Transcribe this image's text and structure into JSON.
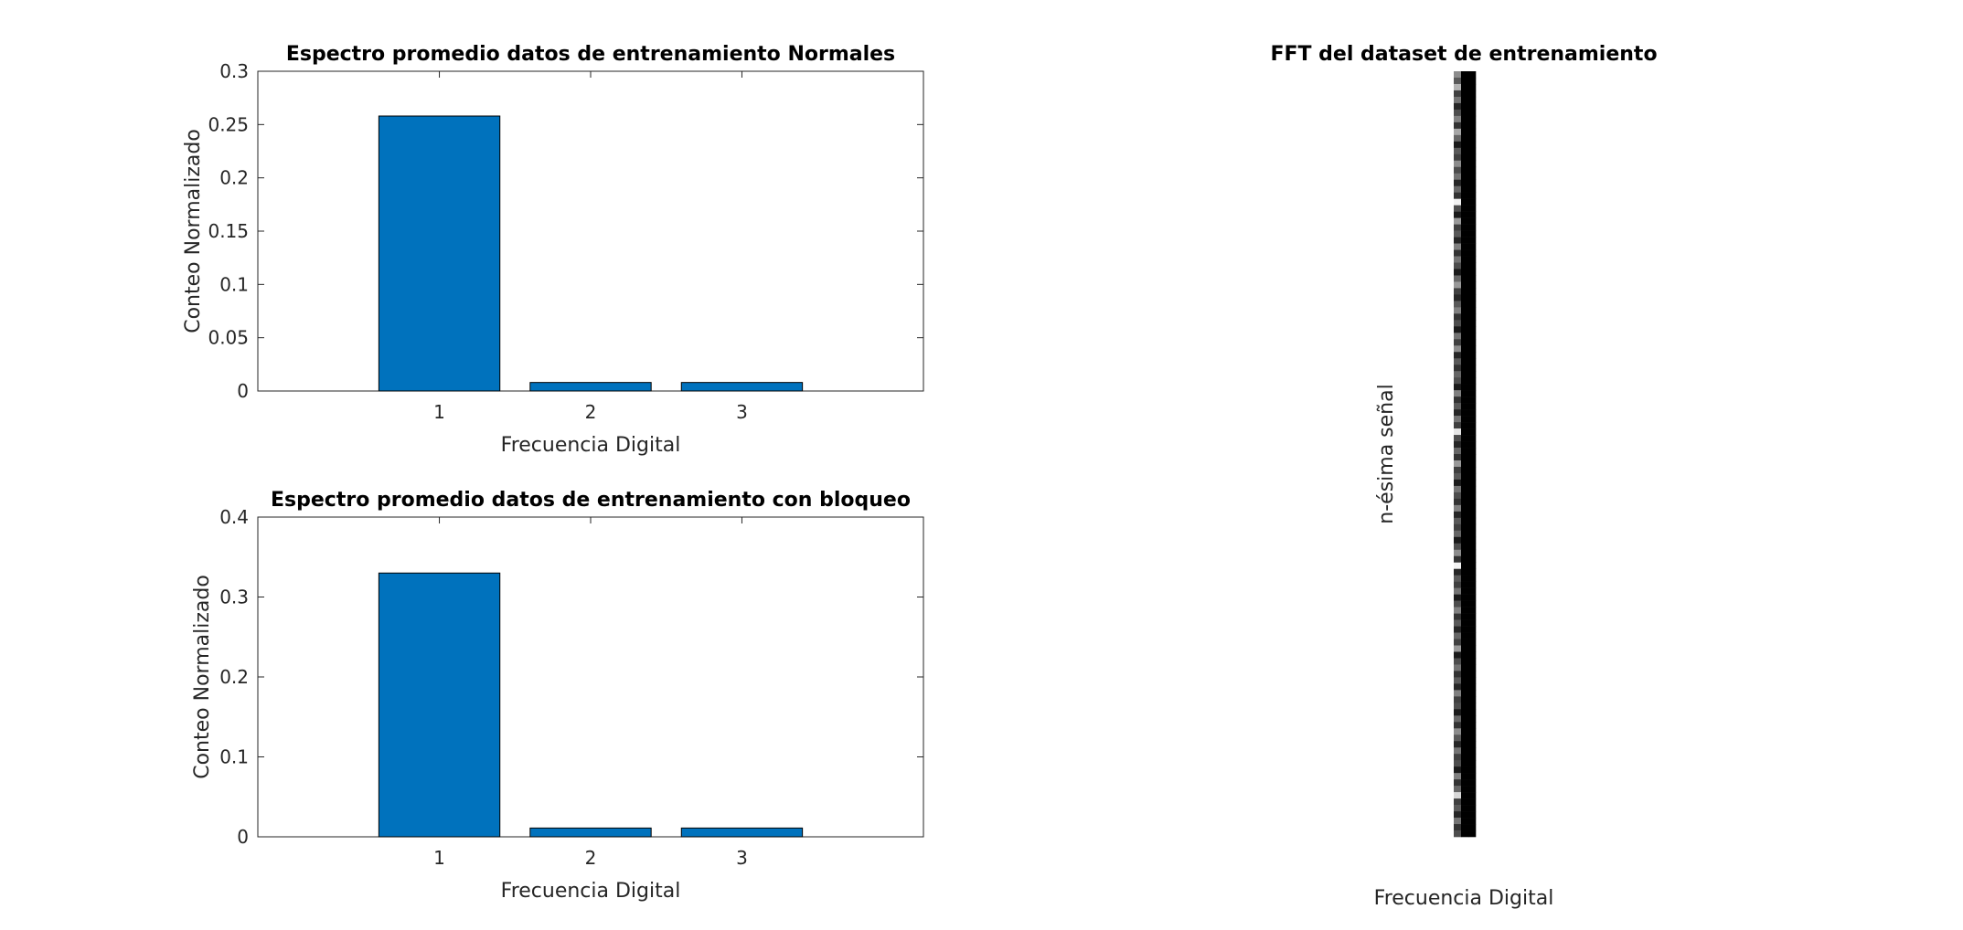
{
  "chart_data": [
    {
      "type": "bar",
      "title": "Espectro promedio datos de entrenamiento Normales",
      "xlabel": "Frecuencia Digital",
      "ylabel": "Conteo Normalizado",
      "categories": [
        "1",
        "2",
        "3"
      ],
      "values": [
        0.258,
        0.008,
        0.008
      ],
      "ylim": [
        0,
        0.3
      ],
      "xlim": [
        -0.2,
        4.2
      ],
      "yticks": [
        "0",
        "0.05",
        "0.1",
        "0.15",
        "0.2",
        "0.25",
        "0.3"
      ],
      "bar_color": "#0072BD",
      "grid": false
    },
    {
      "type": "bar",
      "title": "Espectro promedio datos de entrenamiento con bloqueo",
      "xlabel": "Frecuencia Digital",
      "ylabel": "Conteo Normalizado",
      "categories": [
        "1",
        "2",
        "3"
      ],
      "values": [
        0.33,
        0.011,
        0.011
      ],
      "ylim": [
        0,
        0.4
      ],
      "xlim": [
        -0.2,
        4.2
      ],
      "yticks": [
        "0",
        "0.1",
        "0.2",
        "0.3",
        "0.4"
      ],
      "bar_color": "#0072BD",
      "grid": false
    },
    {
      "type": "heatmap",
      "title": "FFT del dataset de entrenamiento",
      "xlabel": "Frecuencia Digital",
      "ylabel": "n-ésima señal",
      "colormap": "gray",
      "columns": 3,
      "rows": 120,
      "values": [
        [
          0.55,
          0.0,
          0.0
        ],
        [
          0.35,
          0.0,
          0.0
        ],
        [
          0.7,
          0.0,
          0.0
        ],
        [
          0.25,
          0.0,
          0.0
        ],
        [
          0.45,
          0.0,
          0.0
        ],
        [
          0.15,
          0.0,
          0.0
        ],
        [
          0.3,
          0.0,
          0.0
        ],
        [
          0.5,
          0.0,
          0.0
        ],
        [
          0.2,
          0.0,
          0.0
        ],
        [
          0.65,
          0.0,
          0.0
        ],
        [
          0.4,
          0.0,
          0.0
        ],
        [
          0.1,
          0.0,
          0.0
        ],
        [
          0.35,
          0.0,
          0.0
        ],
        [
          0.25,
          0.0,
          0.0
        ],
        [
          0.55,
          0.0,
          0.0
        ],
        [
          0.3,
          0.0,
          0.0
        ],
        [
          0.45,
          0.0,
          0.0
        ],
        [
          0.15,
          0.0,
          0.0
        ],
        [
          0.4,
          0.0,
          0.0
        ],
        [
          0.2,
          0.0,
          0.0
        ],
        [
          0.95,
          0.0,
          0.0
        ],
        [
          0.3,
          0.0,
          0.0
        ],
        [
          0.1,
          0.0,
          0.0
        ],
        [
          0.6,
          0.0,
          0.0
        ],
        [
          0.25,
          0.0,
          0.0
        ],
        [
          0.35,
          0.0,
          0.0
        ],
        [
          0.15,
          0.0,
          0.0
        ],
        [
          0.5,
          0.0,
          0.0
        ],
        [
          0.2,
          0.0,
          0.0
        ],
        [
          0.45,
          0.0,
          0.0
        ],
        [
          0.3,
          0.0,
          0.0
        ],
        [
          0.1,
          0.0,
          0.0
        ],
        [
          0.4,
          0.0,
          0.0
        ],
        [
          0.6,
          0.0,
          0.0
        ],
        [
          0.25,
          0.0,
          0.0
        ],
        [
          0.15,
          0.0,
          0.0
        ],
        [
          0.35,
          0.0,
          0.0
        ],
        [
          0.5,
          0.0,
          0.0
        ],
        [
          0.2,
          0.0,
          0.0
        ],
        [
          0.3,
          0.0,
          0.0
        ],
        [
          0.1,
          0.0,
          0.0
        ],
        [
          0.45,
          0.0,
          0.0
        ],
        [
          0.25,
          0.0,
          0.0
        ],
        [
          0.55,
          0.0,
          0.0
        ],
        [
          0.15,
          0.0,
          0.0
        ],
        [
          0.35,
          0.0,
          0.0
        ],
        [
          0.2,
          0.0,
          0.0
        ],
        [
          0.4,
          0.0,
          0.0
        ],
        [
          0.3,
          0.0,
          0.0
        ],
        [
          0.1,
          0.0,
          0.0
        ],
        [
          0.5,
          0.0,
          0.0
        ],
        [
          0.2,
          0.0,
          0.0
        ],
        [
          0.35,
          0.0,
          0.0
        ],
        [
          0.15,
          0.0,
          0.0
        ],
        [
          0.45,
          0.0,
          0.0
        ],
        [
          0.25,
          0.0,
          0.0
        ],
        [
          0.9,
          0.0,
          0.0
        ],
        [
          0.3,
          0.0,
          0.0
        ],
        [
          0.15,
          0.0,
          0.0
        ],
        [
          0.4,
          0.0,
          0.0
        ],
        [
          0.2,
          0.0,
          0.0
        ],
        [
          0.6,
          0.0,
          0.0
        ],
        [
          0.25,
          0.0,
          0.0
        ],
        [
          0.35,
          0.0,
          0.0
        ],
        [
          0.1,
          0.0,
          0.0
        ],
        [
          0.45,
          0.0,
          0.0
        ],
        [
          0.3,
          0.0,
          0.0
        ],
        [
          0.2,
          0.0,
          0.0
        ],
        [
          0.5,
          0.0,
          0.0
        ],
        [
          0.15,
          0.0,
          0.0
        ],
        [
          0.35,
          0.0,
          0.0
        ],
        [
          0.25,
          0.0,
          0.0
        ],
        [
          0.4,
          0.0,
          0.0
        ],
        [
          0.1,
          0.0,
          0.0
        ],
        [
          0.3,
          0.0,
          0.0
        ],
        [
          0.55,
          0.0,
          0.0
        ],
        [
          0.2,
          0.0,
          0.0
        ],
        [
          0.95,
          0.0,
          0.0
        ],
        [
          0.15,
          0.0,
          0.0
        ],
        [
          0.35,
          0.0,
          0.0
        ],
        [
          0.25,
          0.0,
          0.0
        ],
        [
          0.45,
          0.0,
          0.0
        ],
        [
          0.1,
          0.0,
          0.0
        ],
        [
          0.3,
          0.0,
          0.0
        ],
        [
          0.5,
          0.0,
          0.0
        ],
        [
          0.2,
          0.0,
          0.0
        ],
        [
          0.35,
          0.0,
          0.0
        ],
        [
          0.15,
          0.0,
          0.0
        ],
        [
          0.4,
          0.0,
          0.0
        ],
        [
          0.25,
          0.0,
          0.0
        ],
        [
          0.6,
          0.0,
          0.0
        ],
        [
          0.1,
          0.0,
          0.0
        ],
        [
          0.3,
          0.0,
          0.0
        ],
        [
          0.45,
          0.0,
          0.0
        ],
        [
          0.2,
          0.0,
          0.0
        ],
        [
          0.35,
          0.0,
          0.0
        ],
        [
          0.15,
          0.0,
          0.0
        ],
        [
          0.5,
          0.0,
          0.0
        ],
        [
          0.25,
          0.0,
          0.0
        ],
        [
          0.3,
          0.0,
          0.0
        ],
        [
          0.1,
          0.0,
          0.0
        ],
        [
          0.4,
          0.0,
          0.0
        ],
        [
          0.2,
          0.0,
          0.0
        ],
        [
          0.55,
          0.0,
          0.0
        ],
        [
          0.35,
          0.0,
          0.0
        ],
        [
          0.15,
          0.0,
          0.0
        ],
        [
          0.45,
          0.0,
          0.0
        ],
        [
          0.25,
          0.0,
          0.0
        ],
        [
          0.3,
          0.0,
          0.0
        ],
        [
          0.1,
          0.0,
          0.0
        ],
        [
          0.5,
          0.0,
          0.0
        ],
        [
          0.2,
          0.0,
          0.0
        ],
        [
          0.4,
          0.0,
          0.0
        ],
        [
          0.85,
          0.0,
          0.0
        ],
        [
          0.25,
          0.0,
          0.0
        ],
        [
          0.35,
          0.0,
          0.0
        ],
        [
          0.15,
          0.0,
          0.0
        ],
        [
          0.45,
          0.0,
          0.0
        ],
        [
          0.2,
          0.0,
          0.0
        ],
        [
          0.3,
          0.0,
          0.0
        ]
      ]
    }
  ]
}
